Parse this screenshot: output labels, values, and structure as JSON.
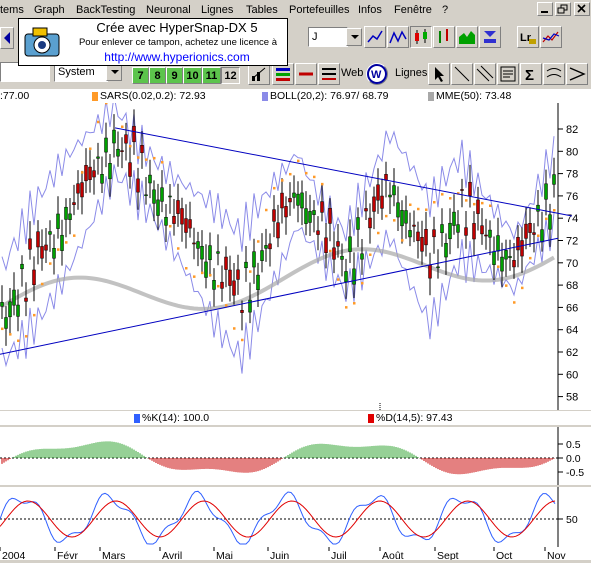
{
  "menu": [
    "tems",
    "Graph",
    "BackTesting",
    "Neuronal",
    "Lignes",
    "Tables",
    "Portefeuilles",
    "Infos",
    "Fenêtre",
    "?"
  ],
  "stamp": {
    "line1": "Crée avec HyperSnap-DX 5",
    "line2": "Pour enlever ce tampon, achetez une licence à",
    "line3": "http://www.hyperionics.com"
  },
  "toolbar": {
    "period_field": "J",
    "system_label": "System",
    "periods": [
      "7",
      "8",
      "9",
      "10",
      "11",
      "12"
    ],
    "selected_period": "12",
    "web_label": "Web",
    "lignes_label": "Lignes",
    "icons": [
      "line-chart-icon",
      "zigzag-chart-icon",
      "candlestick-icon",
      "bar-chart-icon",
      "area-chart-icon",
      "sort-descending-icon",
      "lock-icon",
      "magnify-icon",
      "chart-type-icon",
      "color-bars-icon",
      "horizontal-line-icon",
      "web-icon",
      "pointer-icon",
      "trend-line-icon",
      "parallel-lines-icon",
      "text-icon",
      "sigma-icon",
      "regression-icon",
      "arrow-icon"
    ]
  },
  "indicators": {
    "price": ":77.00",
    "sars": "SARS(0.02,0.2): 72.93",
    "boll": "BOLL(20,2): 76.97/ 68.79",
    "mme": "MME(50): 73.48",
    "k": "%K(14): 100.0",
    "d": "%D(14,5): 97.43"
  },
  "colors": {
    "sars": "#ff9a28",
    "boll": "#8b8be8",
    "mme": "#a8a8a8",
    "k": "#3060ff",
    "d": "#e00000",
    "trend": "#0000c0"
  },
  "price_axis": [
    "82",
    "80",
    "78",
    "76",
    "74",
    "72",
    "70",
    "68",
    "66",
    "64",
    "62",
    "60",
    "58"
  ],
  "osc_axis": [
    "0.5",
    "0.0",
    "-0.5"
  ],
  "stoch_axis": [
    "50"
  ],
  "months": [
    "2004",
    "Févr",
    "Mars",
    "Avril",
    "Mai",
    "Juin",
    "Juil",
    "Août",
    "Sept",
    "Oct",
    "Nov"
  ]
}
